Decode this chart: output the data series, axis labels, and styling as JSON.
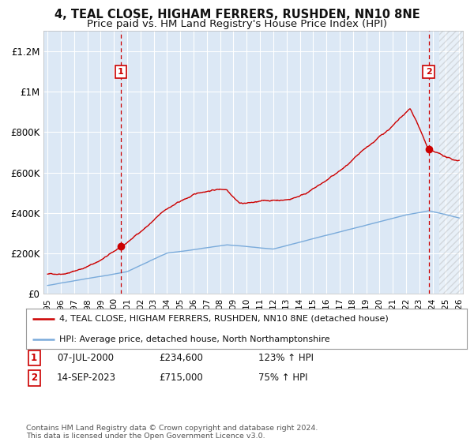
{
  "title": "4, TEAL CLOSE, HIGHAM FERRERS, RUSHDEN, NN10 8NE",
  "subtitle": "Price paid vs. HM Land Registry's House Price Index (HPI)",
  "title_fontsize": 10.5,
  "subtitle_fontsize": 9.5,
  "background_color": "#ffffff",
  "plot_bg_color": "#dce8f5",
  "grid_color": "#ffffff",
  "ylim": [
    0,
    1300000
  ],
  "yticks": [
    0,
    200000,
    400000,
    600000,
    800000,
    1000000,
    1200000
  ],
  "ytick_labels": [
    "£0",
    "£200K",
    "£400K",
    "£600K",
    "£800K",
    "£1M",
    "£1.2M"
  ],
  "xlim_start": 1994.7,
  "xlim_end": 2026.3,
  "sale1_date": 2000.52,
  "sale1_price": 234600,
  "sale1_label": "1",
  "sale2_date": 2023.71,
  "sale2_price": 715000,
  "sale2_label": "2",
  "vline1_x": 2000.52,
  "vline2_x": 2023.71,
  "red_color": "#cc0000",
  "blue_color": "#7aabdb",
  "legend_label_red": "4, TEAL CLOSE, HIGHAM FERRERS, RUSHDEN, NN10 8NE (detached house)",
  "legend_label_blue": "HPI: Average price, detached house, North Northamptonshire",
  "footer": "Contains HM Land Registry data © Crown copyright and database right 2024.\nThis data is licensed under the Open Government Licence v3.0.",
  "xticks": [
    1995,
    1996,
    1997,
    1998,
    1999,
    2000,
    2001,
    2002,
    2003,
    2004,
    2005,
    2006,
    2007,
    2008,
    2009,
    2010,
    2011,
    2012,
    2013,
    2014,
    2015,
    2016,
    2017,
    2018,
    2019,
    2020,
    2021,
    2022,
    2023,
    2024,
    2025,
    2026
  ],
  "hatch_start": 2024.5
}
